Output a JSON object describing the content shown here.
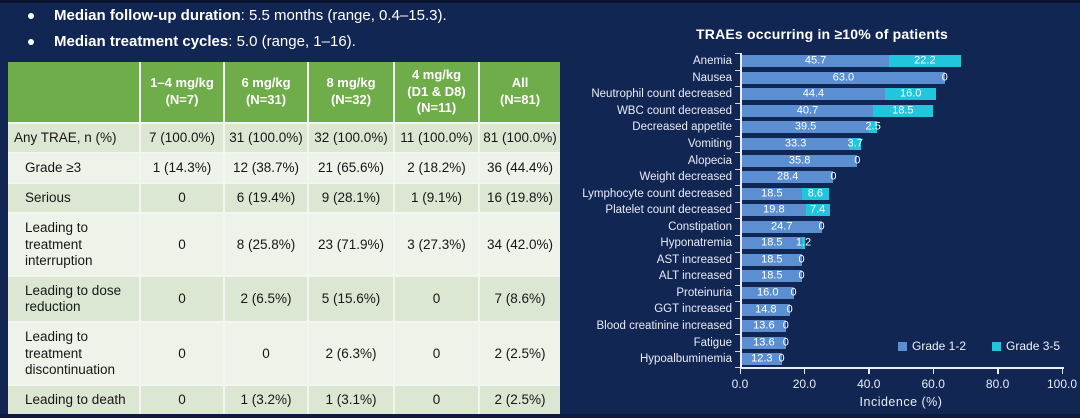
{
  "page": {
    "background": "#122654"
  },
  "bullets": [
    {
      "label": "Median follow-up duration",
      "rest": ": 5.5 months (range, 0.4–15.3)."
    },
    {
      "label": "Median treatment cycles",
      "rest": ": 5.0 (range, 1–16)."
    }
  ],
  "table": {
    "header_color": "#6ead4a",
    "row_color_a": "#dbe7d3",
    "row_color_b": "#edf3e9",
    "columns": [
      "",
      "1–4 mg/kg\n(N=7)",
      "6 mg/kg\n(N=31)",
      "8 mg/kg\n(N=32)",
      "4 mg/kg\n(D1 & D8)\n(N=11)",
      "All\n(N=81)"
    ],
    "rows": [
      {
        "label": "Any TRAE, n (%)",
        "indent": false,
        "values": [
          "7 (100.0%)",
          "31 (100.0%)",
          "32 (100.0%)",
          "11 (100.0%)",
          "81 (100.0%)"
        ]
      },
      {
        "label": "Grade ≥3",
        "indent": true,
        "values": [
          "1 (14.3%)",
          "12 (38.7%)",
          "21 (65.6%)",
          "2 (18.2%)",
          "36 (44.4%)"
        ]
      },
      {
        "label": "Serious",
        "indent": true,
        "values": [
          "0",
          "6 (19.4%)",
          "9 (28.1%)",
          "1 (9.1%)",
          "16 (19.8%)"
        ]
      },
      {
        "label": "Leading to treatment interruption",
        "indent": true,
        "values": [
          "0",
          "8 (25.8%)",
          "23 (71.9%)",
          "3 (27.3%)",
          "34 (42.0%)"
        ]
      },
      {
        "label": "Leading to dose reduction",
        "indent": true,
        "values": [
          "0",
          "2 (6.5%)",
          "5 (15.6%)",
          "0",
          "7 (8.6%)"
        ]
      },
      {
        "label": "Leading to treatment discontinuation",
        "indent": true,
        "values": [
          "0",
          "0",
          "2 (6.3%)",
          "0",
          "2 (2.5%)"
        ]
      },
      {
        "label": "Leading to death",
        "indent": true,
        "values": [
          "0",
          "1 (3.2%)",
          "1 (3.1%)",
          "0",
          "2 (2.5%)"
        ]
      }
    ]
  },
  "chart_data": {
    "type": "bar",
    "orientation": "horizontal",
    "stacked": true,
    "title": "TRAEs occurring in ≥10% of patients",
    "categories": [
      "Anemia",
      "Nausea",
      "Neutrophil count decreased",
      "WBC count decreased",
      "Decreased appetite",
      "Vomiting",
      "Alopecia",
      "Weight decreased",
      "Lymphocyte count decreased",
      "Platelet count decreased",
      "Constipation",
      "Hyponatremia",
      "AST increased",
      "ALT increased",
      "Proteinuria",
      "GGT increased",
      "Blood creatinine increased",
      "Fatigue",
      "Hypoalbuminemia"
    ],
    "series": [
      {
        "name": "Grade 1-2",
        "color": "#5b8fd2",
        "values": [
          45.7,
          63.0,
          44.4,
          40.7,
          39.5,
          33.3,
          35.8,
          28.4,
          18.5,
          19.8,
          24.7,
          18.5,
          18.5,
          18.5,
          16.0,
          14.8,
          13.6,
          13.6,
          12.3
        ]
      },
      {
        "name": "Grade 3-5",
        "color": "#1fc6dc",
        "values": [
          22.2,
          0,
          16.0,
          18.5,
          2.5,
          3.7,
          0,
          0,
          8.6,
          7.4,
          0,
          1.2,
          0,
          0,
          0,
          0,
          0,
          0,
          0
        ]
      }
    ],
    "xlabel": "Incidence (%)",
    "xlim": [
      0,
      100
    ],
    "xticks": [
      0,
      20,
      40,
      60,
      80,
      100
    ],
    "xtick_labels": [
      "0.0",
      "20.0",
      "40.0",
      "60.0",
      "80.0",
      "100.0"
    ],
    "legend_position": "bottom-right",
    "grid": false,
    "value_label_color": "#ffffff"
  }
}
